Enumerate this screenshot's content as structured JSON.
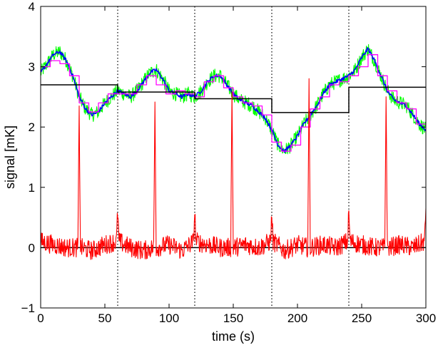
{
  "chart_data": {
    "type": "line",
    "xlabel": "time (s)",
    "ylabel": "signal [mK]",
    "xlim": [
      0,
      300
    ],
    "ylim": [
      -1,
      4
    ],
    "grid": false,
    "xticks": [
      0,
      50,
      100,
      150,
      200,
      250,
      300
    ],
    "yticks": [
      -1,
      0,
      1,
      2,
      3,
      4
    ],
    "xtick_labels": [
      "0",
      "50",
      "100",
      "150",
      "200",
      "250",
      "300"
    ],
    "ytick_labels": [
      "−1",
      "0",
      "1",
      "2",
      "3",
      "4"
    ],
    "vertical_dotted_lines_x": [
      60,
      120,
      180,
      240
    ],
    "colors": {
      "green": "#00ff00",
      "blue": "#0000ff",
      "magenta": "#ff00ff",
      "black": "#000000",
      "red": "#ff0000"
    },
    "series": [
      {
        "color": "green",
        "style": "noisy-band",
        "x": [
          0,
          5,
          10,
          15,
          20,
          25,
          30,
          35,
          40,
          45,
          50,
          55,
          60,
          65,
          70,
          75,
          80,
          85,
          90,
          95,
          100,
          105,
          110,
          115,
          120,
          125,
          130,
          135,
          140,
          145,
          150,
          155,
          160,
          165,
          170,
          175,
          180,
          185,
          190,
          195,
          200,
          205,
          210,
          215,
          220,
          225,
          230,
          235,
          240,
          245,
          250,
          255,
          260,
          265,
          270,
          275,
          280,
          285,
          290,
          295,
          300
        ],
        "y": [
          2.9,
          3.05,
          3.2,
          3.25,
          3.1,
          2.85,
          2.5,
          2.3,
          2.2,
          2.25,
          2.4,
          2.5,
          2.6,
          2.55,
          2.5,
          2.6,
          2.75,
          2.9,
          2.95,
          2.8,
          2.6,
          2.55,
          2.5,
          2.55,
          2.5,
          2.6,
          2.75,
          2.85,
          2.85,
          2.7,
          2.55,
          2.45,
          2.4,
          2.35,
          2.25,
          2.15,
          1.95,
          1.7,
          1.6,
          1.7,
          1.85,
          2.05,
          2.2,
          2.35,
          2.55,
          2.7,
          2.75,
          2.8,
          2.85,
          2.95,
          3.15,
          3.3,
          3.1,
          2.85,
          2.6,
          2.45,
          2.4,
          2.35,
          2.2,
          2.05,
          1.95
        ]
      },
      {
        "color": "blue",
        "style": "line",
        "x": [
          0,
          5,
          10,
          15,
          20,
          25,
          30,
          35,
          40,
          45,
          50,
          55,
          60,
          65,
          70,
          75,
          80,
          85,
          90,
          95,
          100,
          105,
          110,
          115,
          120,
          125,
          130,
          135,
          140,
          145,
          150,
          155,
          160,
          165,
          170,
          175,
          180,
          185,
          190,
          195,
          200,
          205,
          210,
          215,
          220,
          225,
          230,
          235,
          240,
          245,
          250,
          255,
          260,
          265,
          270,
          275,
          280,
          285,
          290,
          295,
          300
        ],
        "y": [
          2.9,
          3.05,
          3.2,
          3.25,
          3.1,
          2.85,
          2.5,
          2.3,
          2.2,
          2.25,
          2.4,
          2.5,
          2.6,
          2.55,
          2.5,
          2.6,
          2.75,
          2.9,
          2.95,
          2.8,
          2.6,
          2.55,
          2.5,
          2.55,
          2.5,
          2.6,
          2.75,
          2.85,
          2.85,
          2.7,
          2.55,
          2.45,
          2.4,
          2.35,
          2.25,
          2.15,
          1.95,
          1.7,
          1.6,
          1.7,
          1.85,
          2.05,
          2.2,
          2.35,
          2.55,
          2.7,
          2.75,
          2.8,
          2.85,
          2.95,
          3.15,
          3.3,
          3.1,
          2.85,
          2.6,
          2.45,
          2.4,
          2.35,
          2.2,
          2.05,
          1.95
        ]
      },
      {
        "color": "magenta",
        "style": "step",
        "x": [
          0,
          7.5,
          15,
          22.5,
          30,
          37.5,
          45,
          52.5,
          60,
          67.5,
          75,
          82.5,
          90,
          97.5,
          105,
          112.5,
          120,
          127.5,
          135,
          142.5,
          150,
          157.5,
          165,
          172.5,
          180,
          187.5,
          195,
          202.5,
          210,
          217.5,
          225,
          232.5,
          240,
          247.5,
          255,
          262.5,
          270,
          277.5,
          285,
          292.5,
          300
        ],
        "y": [
          3.0,
          3.1,
          3.05,
          2.85,
          2.4,
          2.25,
          2.4,
          2.55,
          2.55,
          2.55,
          2.7,
          2.85,
          2.7,
          2.55,
          2.6,
          2.55,
          2.5,
          2.75,
          2.85,
          2.65,
          2.5,
          2.4,
          2.35,
          2.2,
          1.75,
          1.6,
          1.7,
          2.0,
          2.3,
          2.5,
          2.7,
          2.75,
          2.85,
          3.0,
          3.2,
          2.85,
          2.6,
          2.4,
          2.3,
          2.05,
          2.05
        ]
      },
      {
        "color": "black",
        "style": "step",
        "x": [
          0,
          30,
          60,
          120,
          180,
          240,
          300
        ],
        "y": [
          2.7,
          2.7,
          2.58,
          2.47,
          2.24,
          2.66,
          2.66
        ]
      },
      {
        "color": "black",
        "style": "line",
        "x": [
          0,
          300
        ],
        "y": [
          0,
          0
        ]
      },
      {
        "color": "red",
        "style": "noisy-residual",
        "x": [
          0,
          10,
          20,
          29,
          30,
          31,
          40,
          50,
          59,
          60,
          61,
          70,
          80,
          88,
          89,
          90,
          100,
          110,
          119,
          120,
          121,
          130,
          140,
          148,
          149,
          150,
          160,
          170,
          179,
          180,
          181,
          190,
          200,
          208,
          209,
          210,
          220,
          230,
          239,
          240,
          241,
          250,
          260,
          268,
          269,
          270,
          280,
          290,
          299,
          300
        ],
        "y": [
          0.1,
          0.05,
          0.0,
          0.0,
          2.3,
          0.0,
          -0.05,
          0.05,
          0.1,
          0.6,
          0.1,
          0.0,
          -0.05,
          0.0,
          2.4,
          0.0,
          0.05,
          -0.05,
          0.1,
          0.6,
          0.1,
          0.05,
          0.0,
          0.0,
          2.6,
          0.0,
          0.05,
          0.0,
          0.1,
          0.55,
          0.1,
          -0.05,
          0.05,
          0.0,
          2.65,
          0.0,
          0.05,
          0.0,
          0.1,
          0.6,
          0.1,
          0.05,
          0.0,
          0.0,
          2.55,
          0.0,
          0.05,
          0.0,
          0.1,
          0.65
        ]
      }
    ]
  }
}
